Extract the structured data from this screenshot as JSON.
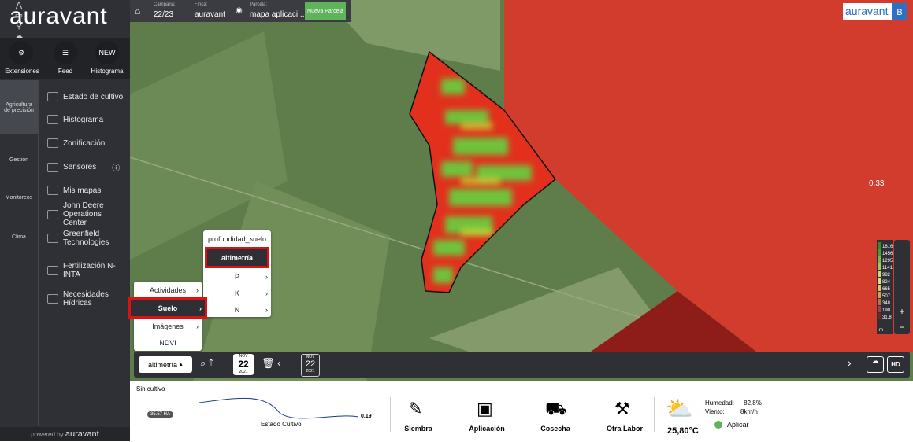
{
  "logo": "auravant",
  "topbar": {
    "campana_label": "Campaña:",
    "campana": "22/23",
    "finca_label": "Finca:",
    "finca": "auravant",
    "parcela_label": "Parcela:",
    "parcela": "mapa aplicaci...",
    "nueva": "Nueva Parcela"
  },
  "brand": {
    "logo": "auravant",
    "user": "B"
  },
  "apps": [
    {
      "label": "Extensiones"
    },
    {
      "label": "Feed"
    },
    {
      "badge": "NEW",
      "label": "Histograma"
    }
  ],
  "nav": [
    "Agricultura de precisión",
    "Gestión",
    "Monitoreos",
    "Clima"
  ],
  "menu": [
    "Estado de cultivo",
    "Histograma",
    "Zonificación",
    "Sensores",
    "Mis mapas",
    "John Deere Operations Center",
    "Greenfield Technologies",
    "Fertilización N-INTA",
    "Necesidades Hídricas"
  ],
  "footer": {
    "prefix": "powered by",
    "brand": "auravant"
  },
  "map": {
    "value": "0.33",
    "legend": [
      "1616",
      "1456",
      "1295",
      "1141",
      "982",
      "824",
      "665",
      "507",
      "348",
      "190",
      "31.8"
    ],
    "legend_unit": "m"
  },
  "dropdown": {
    "sub": [
      "profundidad_suelo",
      "altimetría",
      "P",
      "K",
      "N"
    ],
    "main": [
      "Actividades",
      "Suelo",
      "Imágenes",
      "NDVI"
    ]
  },
  "toolbar": {
    "layer": "altimetría",
    "date1": {
      "month": "NOV",
      "day": "22",
      "year": "2021"
    },
    "date2": {
      "month": "NOV",
      "day": "22",
      "year": "2021"
    },
    "hd": "HD"
  },
  "panel": {
    "status": "Sin cultivo",
    "area": "35.57 HA",
    "chart_label": "Estado Cultivo",
    "chart_value": "0.19",
    "actions": [
      "Siembra",
      "Aplicación",
      "Cosecha",
      "Otra Labor"
    ],
    "temp": "25,80°C",
    "humidity_label": "Humedad:",
    "humidity": "82,8%",
    "wind_label": "Viento:",
    "wind": "8km/h",
    "apply": "Aplicar"
  }
}
